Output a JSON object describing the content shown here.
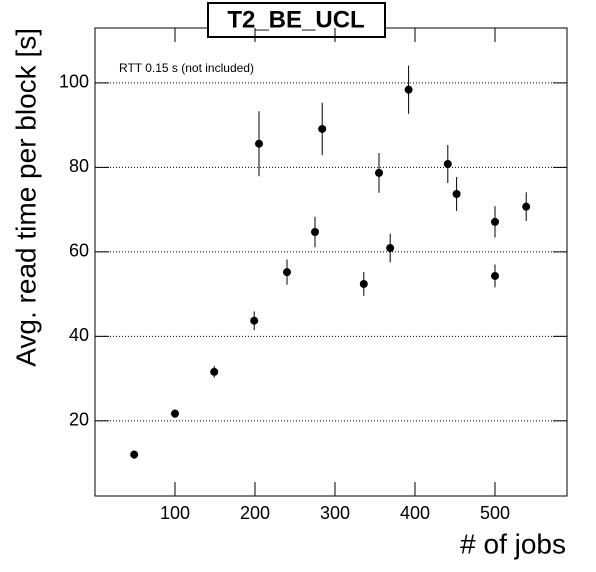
{
  "chart_data": {
    "type": "scatter",
    "title": "T2_BE_UCL",
    "annotation": "RTT 0.15 s (not included)",
    "x_label": "# of jobs",
    "y_label": "Avg. read time per block [s]",
    "xlim": [
      0,
      590
    ],
    "ylim": [
      2.2,
      113
    ],
    "xticks": [
      100,
      200,
      300,
      400,
      500
    ],
    "yticks": [
      20,
      40,
      60,
      80,
      100
    ],
    "grid": true,
    "series": [
      {
        "color": "#000000",
        "x": [
          49,
          100,
          149,
          199,
          205,
          240,
          275,
          284,
          336,
          355,
          369,
          392,
          441,
          452,
          500,
          500,
          539
        ],
        "values": [
          12,
          21.7,
          31.6,
          43.7,
          85.6,
          55.2,
          64.7,
          89.1,
          52.4,
          78.7,
          60.9,
          98.4,
          80.8,
          73.7,
          54.3,
          67.1,
          70.7
        ],
        "errors": [
          1,
          1,
          1.4,
          2.2,
          7.7,
          3,
          3.6,
          6.2,
          2.8,
          4.7,
          3.4,
          5.7,
          4.5,
          4,
          2.7,
          3.7,
          3.4
        ]
      }
    ]
  }
}
